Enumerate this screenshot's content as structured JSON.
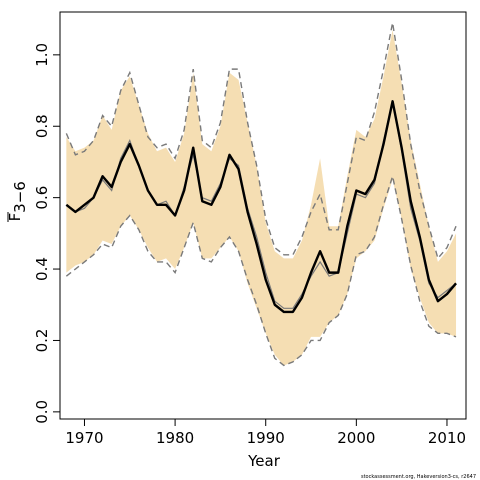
{
  "chart_data": {
    "type": "line",
    "xlabel": "Year",
    "ylabel_main": "F",
    "ylabel_sub": "3−6",
    "credit": "stockassessment.org, Hakeversion3-cs, r2647",
    "xlim": [
      1967.3,
      2012.1
    ],
    "ylim": [
      -0.02,
      1.12
    ],
    "x_ticks": [
      1970,
      1980,
      1990,
      2000,
      2010
    ],
    "y_ticks": [
      0.0,
      0.2,
      0.4,
      0.6,
      0.8,
      1.0
    ],
    "y_tick_labels": [
      "0.0",
      "0.2",
      "0.4",
      "0.6",
      "0.8",
      "1.0"
    ],
    "colors": {
      "band": "#f5deb3",
      "estimate": "#000000",
      "previous": "#7a7a7a",
      "previous_band": "#7a7a7a"
    },
    "x": [
      1968,
      1969,
      1970,
      1971,
      1972,
      1973,
      1974,
      1975,
      1976,
      1977,
      1978,
      1979,
      1980,
      1981,
      1982,
      1983,
      1984,
      1985,
      1986,
      1987,
      1988,
      1989,
      1990,
      1991,
      1992,
      1993,
      1994,
      1995,
      1996,
      1997,
      1998,
      1999,
      2000,
      2001,
      2002,
      2003,
      2004,
      2005,
      2006,
      2007,
      2008,
      2009,
      2010,
      2011
    ],
    "series": [
      {
        "role": "estimate",
        "values": [
          0.58,
          0.56,
          0.58,
          0.6,
          0.66,
          0.63,
          0.7,
          0.75,
          0.69,
          0.62,
          0.58,
          0.58,
          0.55,
          0.62,
          0.74,
          0.59,
          0.58,
          0.63,
          0.72,
          0.68,
          0.56,
          0.47,
          0.37,
          0.3,
          0.28,
          0.28,
          0.32,
          0.39,
          0.45,
          0.39,
          0.39,
          0.52,
          0.62,
          0.61,
          0.65,
          0.75,
          0.87,
          0.74,
          0.59,
          0.49,
          0.37,
          0.31,
          0.33,
          0.36
        ]
      },
      {
        "role": "lower",
        "values": [
          0.39,
          0.41,
          0.42,
          0.44,
          0.48,
          0.47,
          0.52,
          0.55,
          0.51,
          0.46,
          0.42,
          0.43,
          0.4,
          0.46,
          0.53,
          0.43,
          0.43,
          0.46,
          0.49,
          0.45,
          0.36,
          0.29,
          0.22,
          0.16,
          0.13,
          0.14,
          0.16,
          0.21,
          0.21,
          0.25,
          0.27,
          0.33,
          0.43,
          0.45,
          0.48,
          0.57,
          0.65,
          0.54,
          0.4,
          0.32,
          0.25,
          0.22,
          0.22,
          0.21
        ]
      },
      {
        "role": "upper",
        "values": [
          0.77,
          0.73,
          0.74,
          0.76,
          0.83,
          0.79,
          0.9,
          0.94,
          0.86,
          0.78,
          0.73,
          0.74,
          0.7,
          0.78,
          0.95,
          0.75,
          0.73,
          0.8,
          0.95,
          0.93,
          0.81,
          0.69,
          0.53,
          0.45,
          0.43,
          0.43,
          0.48,
          0.58,
          0.71,
          0.52,
          0.52,
          0.66,
          0.79,
          0.77,
          0.82,
          0.94,
          1.07,
          0.92,
          0.76,
          0.64,
          0.52,
          0.42,
          0.45,
          0.5
        ]
      },
      {
        "role": "previous",
        "values": [
          0.58,
          0.56,
          0.57,
          0.6,
          0.65,
          0.62,
          0.71,
          0.76,
          0.69,
          0.62,
          0.58,
          0.59,
          0.55,
          0.63,
          0.72,
          0.6,
          0.59,
          0.64,
          0.71,
          0.69,
          0.57,
          0.49,
          0.39,
          0.31,
          0.29,
          0.29,
          0.33,
          0.38,
          0.42,
          0.38,
          0.39,
          0.5,
          0.61,
          0.6,
          0.64,
          0.76,
          0.87,
          0.73,
          0.57,
          0.48,
          0.36,
          0.32,
          0.34,
          0.36
        ]
      },
      {
        "role": "previous-lower",
        "values": [
          0.38,
          0.4,
          0.42,
          0.44,
          0.47,
          0.46,
          0.52,
          0.55,
          0.51,
          0.45,
          0.42,
          0.42,
          0.39,
          0.46,
          0.53,
          0.43,
          0.42,
          0.46,
          0.49,
          0.45,
          0.37,
          0.3,
          0.22,
          0.15,
          0.13,
          0.14,
          0.16,
          0.2,
          0.2,
          0.25,
          0.27,
          0.33,
          0.44,
          0.45,
          0.49,
          0.58,
          0.66,
          0.54,
          0.41,
          0.31,
          0.24,
          0.22,
          0.22,
          0.21
        ]
      },
      {
        "role": "previous-upper",
        "values": [
          0.78,
          0.72,
          0.73,
          0.76,
          0.83,
          0.8,
          0.9,
          0.95,
          0.86,
          0.77,
          0.74,
          0.75,
          0.71,
          0.79,
          0.96,
          0.76,
          0.74,
          0.81,
          0.96,
          0.96,
          0.81,
          0.69,
          0.54,
          0.46,
          0.44,
          0.44,
          0.49,
          0.56,
          0.61,
          0.51,
          0.51,
          0.64,
          0.77,
          0.76,
          0.84,
          0.96,
          1.09,
          0.93,
          0.75,
          0.62,
          0.52,
          0.43,
          0.46,
          0.52
        ]
      }
    ]
  }
}
